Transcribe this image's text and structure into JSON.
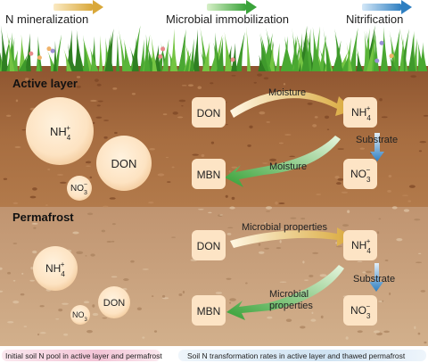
{
  "legend": {
    "n_mineralization": "N mineralization",
    "microbial_immobilization": "Microbial immobilization",
    "nitrification": "Nitrification"
  },
  "active_layer": {
    "title": "Active layer",
    "pool": {
      "nh4": "NH",
      "nh4_sub": "4",
      "nh4_sup": "+",
      "don": "DON",
      "no3": "NO",
      "no3_sub": "3",
      "no3_sup": "−"
    },
    "process": {
      "don": "DON",
      "nh4": "NH",
      "nh4_sub": "4",
      "nh4_sup": "+",
      "mbn": "MBN",
      "no3": "NO",
      "no3_sub": "3",
      "no3_sup": "−",
      "label_top": "Moisture",
      "label_mid": "Moisture",
      "label_sub": "Substrate"
    }
  },
  "permafrost": {
    "title": "Permafrost",
    "pool": {
      "nh4": "NH",
      "nh4_sub": "4",
      "nh4_sup": "+",
      "don": "DON",
      "no3": "NO",
      "no3_sub": "3",
      "no3_sup": "−"
    },
    "process": {
      "don": "DON",
      "nh4": "NH",
      "nh4_sub": "4",
      "nh4_sup": "+",
      "mbn": "MBN",
      "no3": "NO",
      "no3_sub": "3",
      "no3_sup": "−",
      "label_top": "Microbial properties",
      "label_mid_1": "Microbial",
      "label_mid_2": "properties",
      "label_sub": "Substrate"
    }
  },
  "captions": {
    "left": "Initial soil N pool in active layer and permafrost",
    "right": "Soil N transformation rates in active layer and thawed permafrost"
  },
  "colors": {
    "active_soil": "#a46a3f",
    "permafrost_soil": "#c9a37c",
    "pool_circle": "#fbe3c3",
    "box": "#fde4c5",
    "mineralization": "#d9a83a",
    "immobilization": "#3aa33a",
    "nitrification": "#2f7fc1",
    "caption_left": "#f3c4d6",
    "caption_right": "#cfe3f3"
  }
}
